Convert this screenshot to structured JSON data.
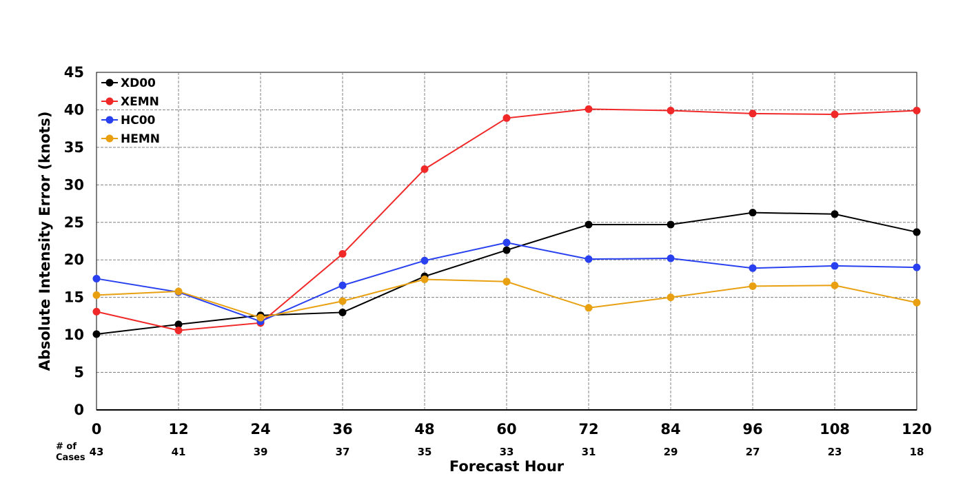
{
  "chart_data": {
    "type": "line",
    "title": "",
    "xlabel": "Forecast Hour",
    "ylabel": "Absolute Intensity Error (knots)",
    "xlim": [
      0,
      120
    ],
    "ylim": [
      0,
      45
    ],
    "x": [
      0,
      12,
      24,
      36,
      48,
      60,
      72,
      84,
      96,
      108,
      120
    ],
    "x_ticks": [
      "0",
      "12",
      "24",
      "36",
      "48",
      "60",
      "72",
      "84",
      "96",
      "108",
      "120"
    ],
    "y_ticks": [
      "0",
      "5",
      "10",
      "15",
      "20",
      "25",
      "30",
      "35",
      "40",
      "45"
    ],
    "grid": true,
    "legend_position": "top-left",
    "series": [
      {
        "name": "XD00",
        "color": "#000000",
        "values": [
          10.1,
          11.4,
          12.6,
          13.0,
          17.8,
          21.3,
          24.7,
          24.7,
          26.3,
          26.1,
          23.7
        ]
      },
      {
        "name": "XEMN",
        "color": "#f02828",
        "values": [
          13.1,
          10.6,
          11.6,
          20.8,
          32.1,
          38.9,
          40.1,
          39.9,
          39.5,
          39.4,
          39.9
        ]
      },
      {
        "name": "HC00",
        "color": "#2840f0",
        "values": [
          17.5,
          15.7,
          11.8,
          16.6,
          19.9,
          22.3,
          20.1,
          20.2,
          18.9,
          19.2,
          19.0
        ]
      },
      {
        "name": "HEMN",
        "color": "#e8a010",
        "values": [
          15.3,
          15.8,
          12.3,
          14.5,
          17.4,
          17.1,
          13.6,
          15.0,
          16.5,
          16.6,
          14.3
        ]
      }
    ],
    "cases_label": [
      "# of",
      "Cases"
    ],
    "cases": [
      "43",
      "41",
      "39",
      "37",
      "35",
      "33",
      "31",
      "29",
      "27",
      "23",
      "18"
    ]
  }
}
